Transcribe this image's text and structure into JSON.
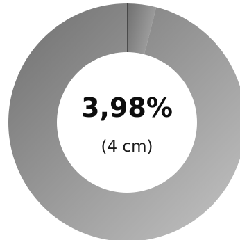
{
  "chart_data": {
    "type": "pie",
    "style": "donut",
    "categories": [
      "",
      ""
    ],
    "values": [
      3.98,
      96.02
    ],
    "unit": "%",
    "center_value": "3,98%",
    "center_caption": "(4 cm)",
    "title": "",
    "legend": "none",
    "colors": {
      "ring_light": "#c4c4c4",
      "ring_dark": "#6f6f6f",
      "divider": "#1a1a1a",
      "center_fill": "#ffffff",
      "center_text": "#0d0d0d"
    }
  }
}
